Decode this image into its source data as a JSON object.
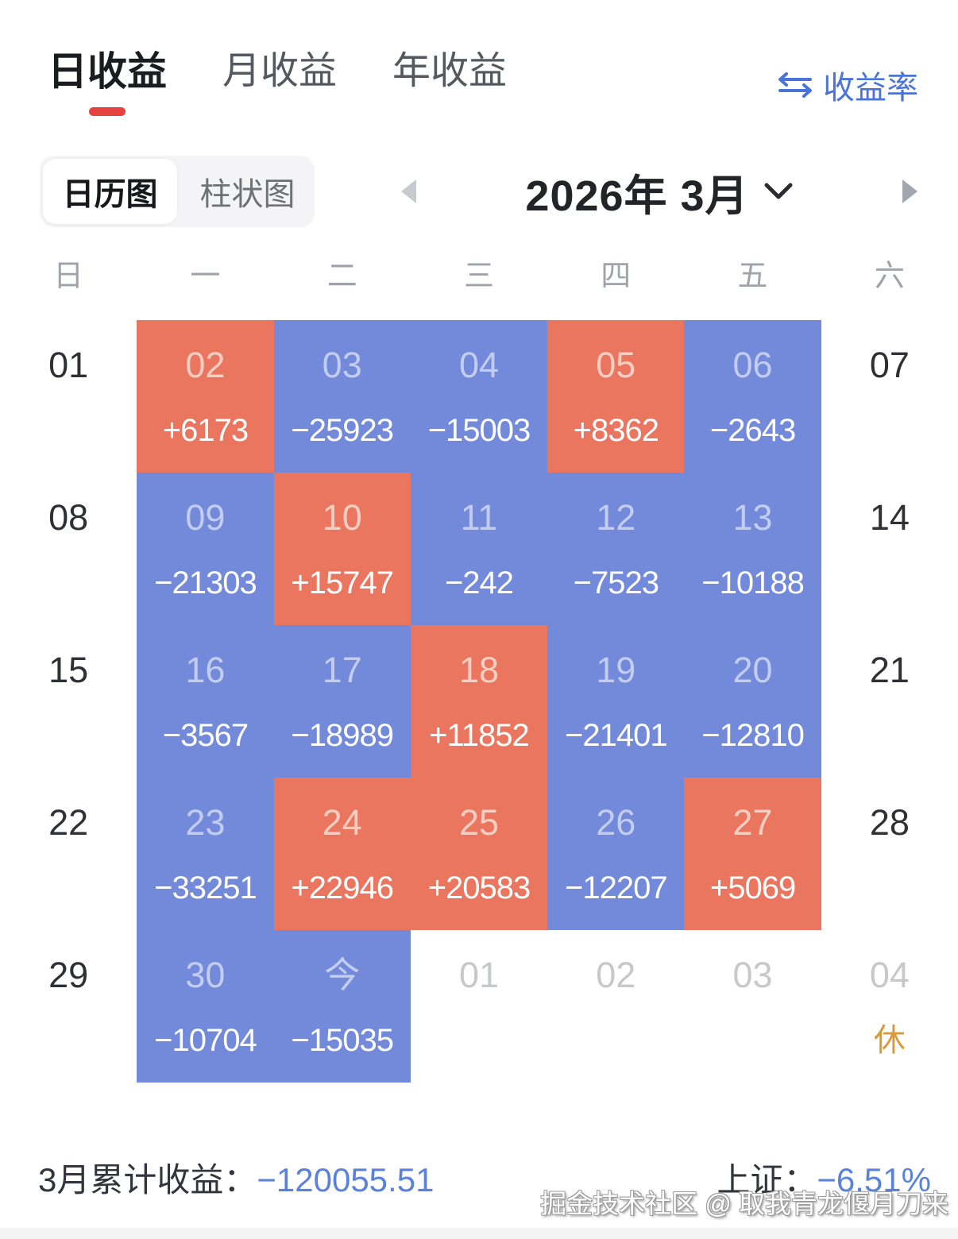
{
  "tabs": [
    {
      "id": "daily-return",
      "label": "日收益",
      "active": true
    },
    {
      "id": "monthly-return",
      "label": "月收益",
      "active": false
    },
    {
      "id": "yearly-return",
      "label": "年收益",
      "active": false
    }
  ],
  "header": {
    "rate_toggle_label": "收益率"
  },
  "view_toggle": [
    {
      "id": "calendar-view",
      "label": "日历图",
      "active": true
    },
    {
      "id": "bar-view",
      "label": "柱状图",
      "active": false
    }
  ],
  "nav": {
    "month_label": "2026年 3月"
  },
  "weekdays": [
    {
      "id": "sun",
      "label": "日"
    },
    {
      "id": "mon",
      "label": "一"
    },
    {
      "id": "tue",
      "label": "二"
    },
    {
      "id": "wed",
      "label": "三"
    },
    {
      "id": "thu",
      "label": "四"
    },
    {
      "id": "fri",
      "label": "五"
    },
    {
      "id": "sat",
      "label": "六"
    }
  ],
  "calendar": {
    "weeks": [
      [
        {
          "day": "01",
          "kind": "weekend"
        },
        {
          "day": "02",
          "value": "+6173",
          "kind": "profit"
        },
        {
          "day": "03",
          "value": "−25923",
          "kind": "loss"
        },
        {
          "day": "04",
          "value": "−15003",
          "kind": "loss"
        },
        {
          "day": "05",
          "value": "+8362",
          "kind": "profit"
        },
        {
          "day": "06",
          "value": "−2643",
          "kind": "loss"
        },
        {
          "day": "07",
          "kind": "weekend"
        }
      ],
      [
        {
          "day": "08",
          "kind": "weekend"
        },
        {
          "day": "09",
          "value": "−21303",
          "kind": "loss"
        },
        {
          "day": "10",
          "value": "+15747",
          "kind": "profit"
        },
        {
          "day": "11",
          "value": "−242",
          "kind": "loss"
        },
        {
          "day": "12",
          "value": "−7523",
          "kind": "loss"
        },
        {
          "day": "13",
          "value": "−10188",
          "kind": "loss"
        },
        {
          "day": "14",
          "kind": "weekend"
        }
      ],
      [
        {
          "day": "15",
          "kind": "weekend"
        },
        {
          "day": "16",
          "value": "−3567",
          "kind": "loss"
        },
        {
          "day": "17",
          "value": "−18989",
          "kind": "loss"
        },
        {
          "day": "18",
          "value": "+11852",
          "kind": "profit"
        },
        {
          "day": "19",
          "value": "−21401",
          "kind": "loss"
        },
        {
          "day": "20",
          "value": "−12810",
          "kind": "loss"
        },
        {
          "day": "21",
          "kind": "weekend"
        }
      ],
      [
        {
          "day": "22",
          "kind": "weekend"
        },
        {
          "day": "23",
          "value": "−33251",
          "kind": "loss"
        },
        {
          "day": "24",
          "value": "+22946",
          "kind": "profit"
        },
        {
          "day": "25",
          "value": "+20583",
          "kind": "profit"
        },
        {
          "day": "26",
          "value": "−12207",
          "kind": "loss"
        },
        {
          "day": "27",
          "value": "+5069",
          "kind": "profit"
        },
        {
          "day": "28",
          "kind": "weekend"
        }
      ],
      [
        {
          "day": "29",
          "kind": "weekend"
        },
        {
          "day": "30",
          "value": "−10704",
          "kind": "loss"
        },
        {
          "day": "今",
          "value": "−15035",
          "kind": "loss"
        },
        {
          "day": "01",
          "kind": "next"
        },
        {
          "day": "02",
          "kind": "next"
        },
        {
          "day": "03",
          "kind": "next"
        },
        {
          "day": "04",
          "kind": "next",
          "rest": "休"
        }
      ]
    ]
  },
  "summary": {
    "month_total_label": "3月累计收益：",
    "month_total_value": "−120055.51",
    "index_label": "上证：",
    "index_value": "−6.51%"
  },
  "watermark": "掘金技术社区 @ 取我青龙偃月刀来",
  "colors": {
    "profit_bg": "#EB7660",
    "loss_bg": "#7389DA",
    "profit_day_text": "#F7CEC2",
    "loss_day_text": "#C3CDF1",
    "value_text": "#FFFFFF",
    "link_blue": "#4B74D8",
    "summary_value_blue": "#5B82DB",
    "active_tab_underline": "#E5413E",
    "rest_orange": "#D89B3C",
    "weekend_day_text": "#2E3035",
    "next_month_day_text": "#C7C8CA"
  }
}
